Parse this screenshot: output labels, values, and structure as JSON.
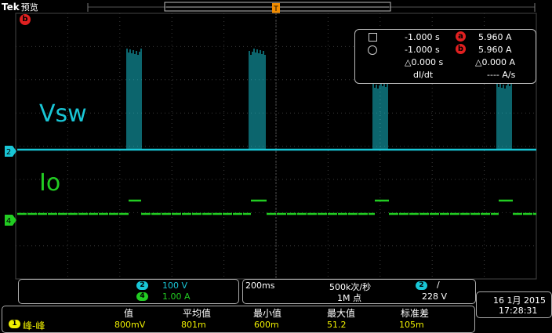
{
  "header": {
    "brand": "Tek",
    "mode": "预览",
    "trigger_indicator": "T"
  },
  "screen_markers": {
    "cursor_b": "b"
  },
  "channels": {
    "ch2": {
      "label": "Vsw",
      "ref": "2",
      "color": "#19c6d6"
    },
    "ch4": {
      "label": "Io",
      "ref": "4",
      "color": "#22cc22"
    }
  },
  "cursor_readout": {
    "row1": {
      "time": "-1.000 s",
      "chip": "a",
      "value": "5.960 A"
    },
    "row2": {
      "time": "-1.000 s",
      "chip": "b",
      "value": "5.960 A"
    },
    "row3": {
      "time": "△0.000 s",
      "value": "△0.000 A"
    },
    "row4": {
      "label": "dI/dt",
      "value": "---- A/s"
    }
  },
  "vertical": {
    "ch2": {
      "chip": "2",
      "scale": "100 V"
    },
    "ch4": {
      "chip": "4",
      "scale": "1.00 A"
    }
  },
  "horizontal": {
    "timebase": "200ms",
    "sample_rate": "500k次/秒",
    "record_length": "1M 点"
  },
  "trigger": {
    "chip": "2",
    "slope": "/",
    "level": "228 V"
  },
  "datetime": {
    "date": "16 1月 2015",
    "time": "17:28:31"
  },
  "measurements": {
    "headers": [
      "值",
      "平均值",
      "最小值",
      "最大值",
      "标准差"
    ],
    "row": {
      "chip": "1",
      "name": "峰-峰",
      "values": [
        "800mV",
        "801m",
        "600m",
        "51.2",
        "105m"
      ]
    }
  }
}
